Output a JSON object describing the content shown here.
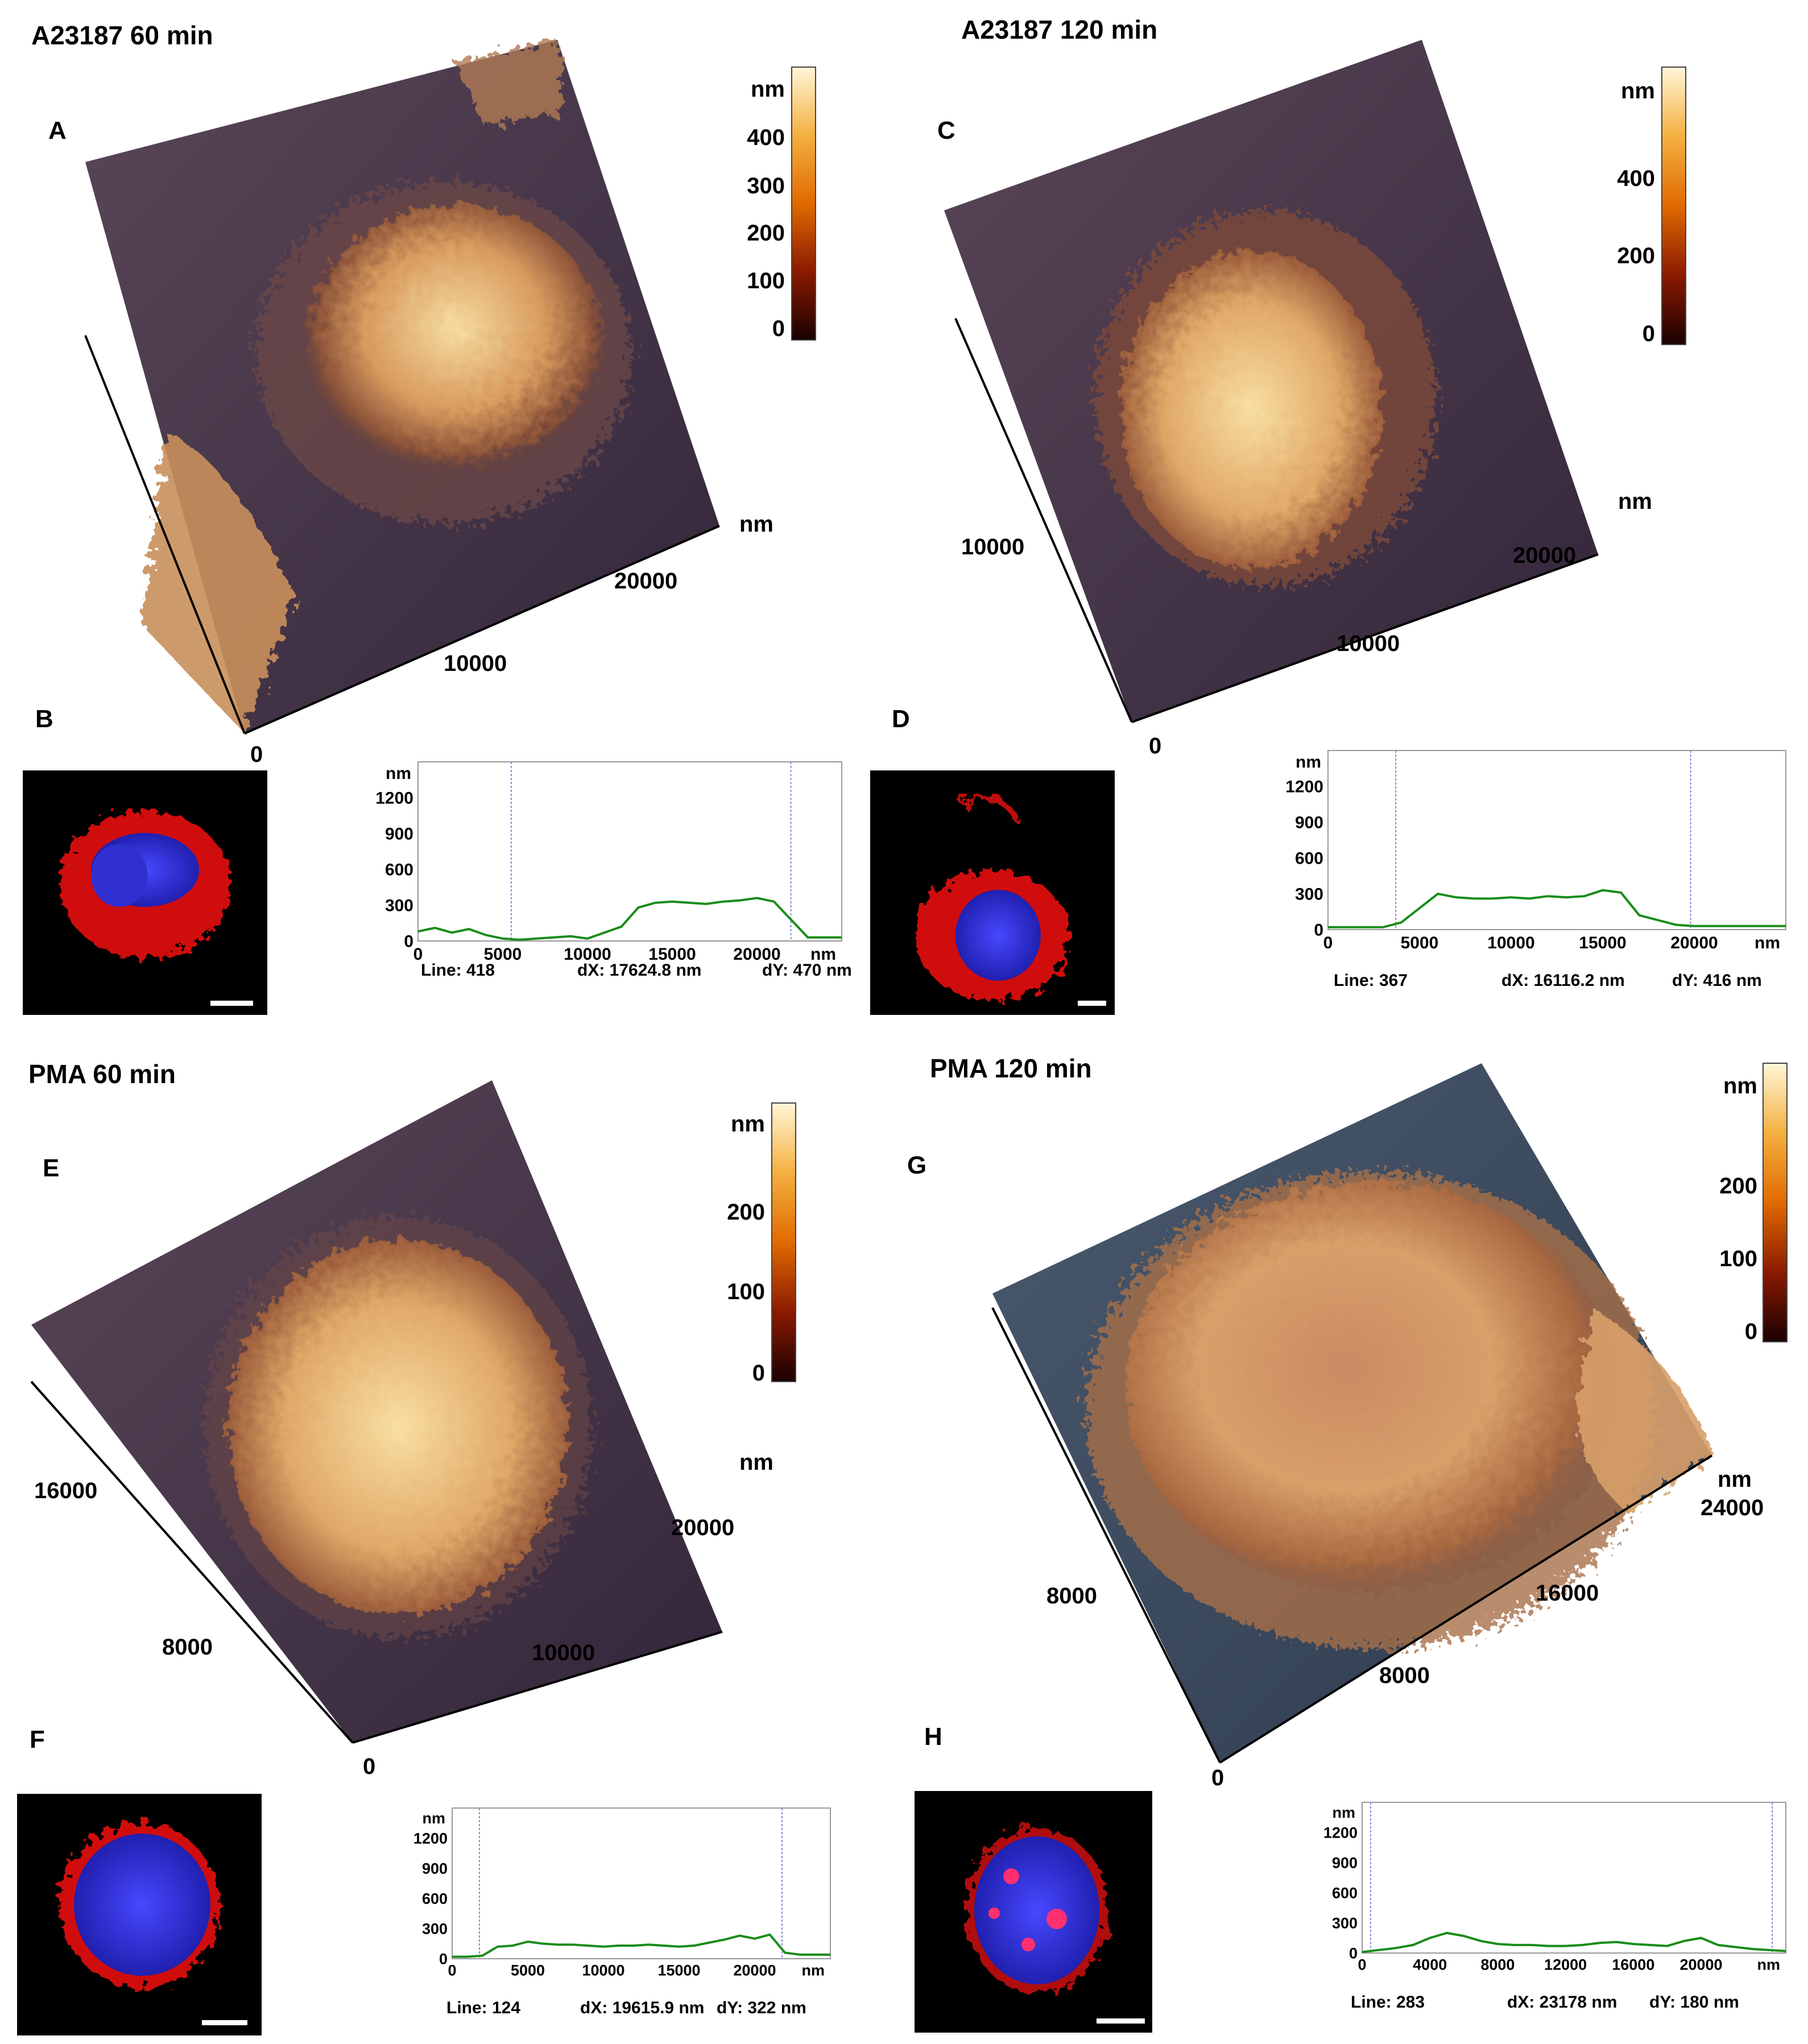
{
  "colors": {
    "afm_dark": "#3a2a3a",
    "afm_mid": "#b87a4f",
    "afm_bright": "#f3d89a",
    "profile_line": "#1a8c1a",
    "marker_line": "#8888dd",
    "nucleus_blue": "#3a3ae0",
    "membrane_red": "#e01818",
    "scalebar": "#ffffff"
  },
  "panels": {
    "A": {
      "heading": "A23187 60 min",
      "letter": "A",
      "colorbar": {
        "unit": "nm",
        "ticks": [
          "400",
          "300",
          "200",
          "100",
          "0"
        ]
      },
      "axis_unit": "nm",
      "axis_ticks_x": [
        "10000",
        "20000"
      ],
      "axis_origin": "0"
    },
    "B": {
      "letter": "B",
      "profile": {
        "unit_y": "nm",
        "unit_x": "nm",
        "y_ticks": [
          "1200",
          "900",
          "600",
          "300",
          "0"
        ],
        "x_ticks": [
          "0",
          "5000",
          "10000",
          "15000",
          "20000"
        ],
        "line": "Line: 418",
        "dx": "dX: 17624.8 nm",
        "dy": "dY: 470 nm"
      }
    },
    "C": {
      "heading": "A23187 120 min",
      "letter": "C",
      "colorbar": {
        "unit": "nm",
        "ticks": [
          "400",
          "200",
          "0"
        ]
      },
      "axis_unit": "nm",
      "axis_ticks_x": [
        "10000",
        "20000"
      ],
      "axis_ticks_y": [
        "10000"
      ],
      "axis_origin": "0"
    },
    "D": {
      "letter": "D",
      "profile": {
        "unit_y": "nm",
        "unit_x": "nm",
        "y_ticks": [
          "1200",
          "900",
          "600",
          "300",
          "0"
        ],
        "x_ticks": [
          "0",
          "5000",
          "10000",
          "15000",
          "20000"
        ],
        "line": "Line: 367",
        "dx": "dX: 16116.2 nm",
        "dy": "dY:  416 nm"
      }
    },
    "E": {
      "heading": "PMA 60 min",
      "letter": "E",
      "colorbar": {
        "unit": "nm",
        "ticks": [
          "200",
          "100",
          "0"
        ]
      },
      "axis_unit": "nm",
      "axis_ticks_x": [
        "10000",
        "20000"
      ],
      "axis_ticks_y": [
        "8000",
        "16000"
      ],
      "axis_origin": "0"
    },
    "F": {
      "letter": "F",
      "profile": {
        "unit_y": "nm",
        "unit_x": "nm",
        "y_ticks": [
          "1200",
          "900",
          "600",
          "300",
          "0"
        ],
        "x_ticks": [
          "0",
          "5000",
          "10000",
          "15000",
          "20000"
        ],
        "line": "Line: 124",
        "dx": "dX: 19615.9 nm",
        "dy": "dY: 322 nm"
      }
    },
    "G": {
      "heading": "PMA 120 min",
      "letter": "G",
      "colorbar": {
        "unit": "nm",
        "ticks": [
          "200",
          "100",
          "0"
        ]
      },
      "axis_unit": "nm",
      "axis_ticks_x": [
        "8000",
        "16000",
        "24000"
      ],
      "axis_ticks_y": [
        "8000"
      ],
      "axis_origin": "0"
    },
    "H": {
      "letter": "H",
      "profile": {
        "unit_y": "nm",
        "unit_x": "nm",
        "y_ticks": [
          "1200",
          "900",
          "600",
          "300",
          "0"
        ],
        "x_ticks": [
          "0",
          "4000",
          "8000",
          "12000",
          "16000",
          "20000"
        ],
        "line": "Line: 283",
        "dx": "dX: 23178 nm",
        "dy": "dY: 180 nm"
      }
    }
  },
  "chart_data": [
    {
      "type": "line",
      "panel": "B",
      "x": [
        0,
        1000,
        2000,
        3000,
        4000,
        5000,
        6000,
        7000,
        8000,
        9000,
        10000,
        11000,
        12000,
        13000,
        14000,
        15000,
        16000,
        17000,
        18000,
        19000,
        20000,
        21000,
        22000,
        23000,
        24000,
        25000
      ],
      "y": [
        80,
        110,
        70,
        100,
        50,
        20,
        10,
        20,
        30,
        40,
        20,
        70,
        120,
        280,
        320,
        330,
        320,
        310,
        330,
        340,
        360,
        330,
        180,
        30,
        30,
        30
      ],
      "ylim": [
        0,
        1500
      ],
      "xlim": [
        0,
        25000
      ],
      "markers": [
        5500,
        22000
      ]
    },
    {
      "type": "line",
      "panel": "D",
      "x": [
        0,
        1000,
        2000,
        3000,
        4000,
        5000,
        6000,
        7000,
        8000,
        9000,
        10000,
        11000,
        12000,
        13000,
        14000,
        15000,
        16000,
        17000,
        18000,
        19000,
        20000,
        21000,
        22000,
        23000,
        24000,
        25000
      ],
      "y": [
        20,
        20,
        20,
        20,
        60,
        180,
        300,
        270,
        260,
        260,
        270,
        260,
        280,
        270,
        280,
        330,
        310,
        120,
        80,
        40,
        30,
        30,
        30,
        30,
        30,
        30
      ],
      "ylim": [
        0,
        1500
      ],
      "xlim": [
        0,
        25000
      ],
      "markers": [
        3700,
        19800
      ]
    },
    {
      "type": "line",
      "panel": "F",
      "x": [
        0,
        1000,
        2000,
        3000,
        4000,
        5000,
        6000,
        7000,
        8000,
        9000,
        10000,
        11000,
        12000,
        13000,
        14000,
        15000,
        16000,
        17000,
        18000,
        19000,
        20000,
        21000,
        22000,
        23000,
        24000,
        25000
      ],
      "y": [
        20,
        20,
        30,
        120,
        130,
        170,
        150,
        140,
        140,
        130,
        120,
        130,
        130,
        140,
        130,
        120,
        130,
        160,
        190,
        230,
        200,
        240,
        60,
        40,
        40,
        40
      ],
      "ylim": [
        0,
        1500
      ],
      "xlim": [
        0,
        25000
      ],
      "markers": [
        1800,
        21800
      ]
    },
    {
      "type": "line",
      "panel": "H",
      "x": [
        0,
        1000,
        2000,
        3000,
        4000,
        5000,
        6000,
        7000,
        8000,
        9000,
        10000,
        11000,
        12000,
        13000,
        14000,
        15000,
        16000,
        17000,
        18000,
        19000,
        20000,
        21000,
        22000,
        23000,
        24000,
        25000
      ],
      "y": [
        10,
        30,
        50,
        80,
        150,
        200,
        170,
        120,
        90,
        80,
        80,
        70,
        70,
        80,
        100,
        110,
        90,
        80,
        70,
        120,
        150,
        80,
        60,
        40,
        30,
        20
      ],
      "ylim": [
        0,
        1500
      ],
      "xlim": [
        0,
        25000
      ],
      "markers": [
        500,
        24200
      ]
    }
  ]
}
